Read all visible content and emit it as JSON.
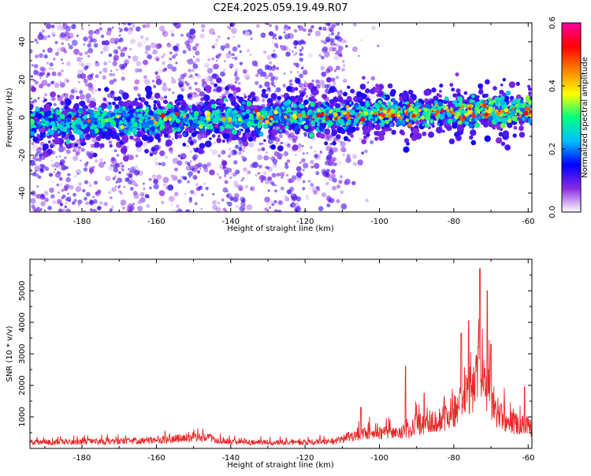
{
  "title": "C2E4.2025.059.19.49.R07",
  "chart_data": [
    {
      "type": "heatmap",
      "xlabel": "Height of straight line (km)",
      "ylabel": "Frequency (Hz)",
      "xlim": [
        -194,
        -59
      ],
      "ylim": [
        -50,
        50
      ],
      "x_ticks": [
        -180,
        -160,
        -140,
        -120,
        -100,
        -80,
        -60
      ],
      "y_ticks": [
        -40,
        -20,
        0,
        20,
        40
      ],
      "colorbar": {
        "label": "Normalized spectral amplitude",
        "range": [
          0.0,
          0.6
        ],
        "ticks": [
          0.0,
          0.2,
          0.4,
          0.6
        ],
        "tick_labels": [
          "0.0",
          "0.2",
          "0.4",
          "0.6"
        ],
        "colors": [
          "#ffffff",
          "#8a2be2",
          "#0000ff",
          "#00bfff",
          "#00ff80",
          "#ffff00",
          "#ff8000",
          "#ff0000",
          "#ff00a0"
        ]
      },
      "band": {
        "center_freq_at_xlim": [
          -3,
          4
        ],
        "half_width_hz": 8,
        "scatter_extent_hz": [
          -50,
          50
        ],
        "scatter_x_limit": -108
      }
    },
    {
      "type": "line",
      "xlabel": "Height of straight line (km)",
      "ylabel": "SNR (10 * v/v)",
      "xlim": [
        -194,
        -59
      ],
      "ylim": [
        0,
        6000
      ],
      "x_ticks": [
        -180,
        -160,
        -140,
        -120,
        -100,
        -80,
        -60
      ],
      "y_ticks": [
        1000,
        2000,
        3000,
        4000,
        5000
      ],
      "color": "#e8282a",
      "envelope": {
        "x": [
          -194,
          -180,
          -170,
          -160,
          -150,
          -145,
          -140,
          -130,
          -120,
          -112,
          -106,
          -100,
          -96,
          -92,
          -90,
          -85,
          -80,
          -77,
          -75,
          -73,
          -72,
          -70,
          -68,
          -65,
          -62,
          -60,
          -59
        ],
        "y": [
          230,
          250,
          280,
          320,
          420,
          380,
          250,
          230,
          240,
          280,
          550,
          650,
          550,
          700,
          900,
          1000,
          1400,
          1900,
          2300,
          3000,
          2600,
          1900,
          1300,
          1000,
          900,
          800,
          750
        ]
      },
      "peaks": [
        {
          "x": -73,
          "y": 5700
        },
        {
          "x": -71,
          "y": 5000
        },
        {
          "x": -76,
          "y": 4050
        },
        {
          "x": -78,
          "y": 3650
        },
        {
          "x": -70,
          "y": 3300
        },
        {
          "x": -93,
          "y": 2600
        },
        {
          "x": -88,
          "y": 1750
        },
        {
          "x": -105,
          "y": 1300
        },
        {
          "x": -61,
          "y": 1950
        }
      ]
    }
  ]
}
